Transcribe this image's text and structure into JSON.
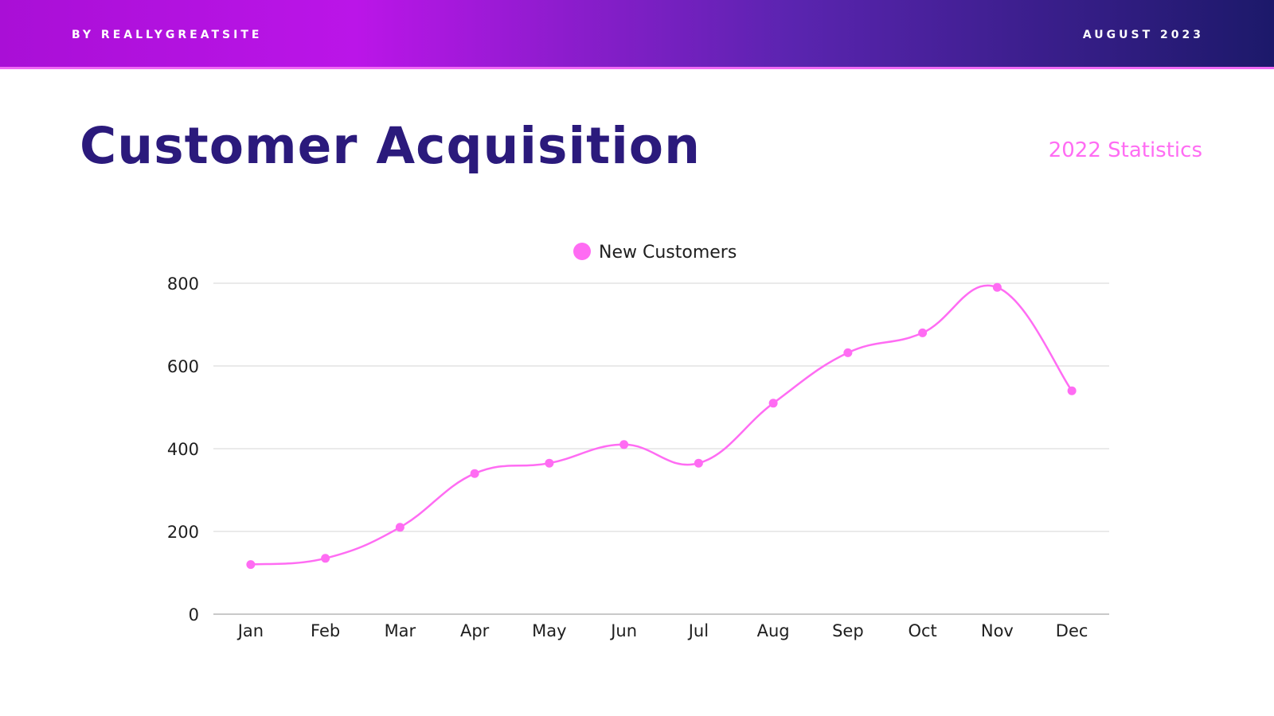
{
  "header": {
    "byline": "BY REALLYGREATSITE",
    "date": "AUGUST 2023"
  },
  "title": "Customer Acquisition",
  "subtitle": "2022 Statistics",
  "colors": {
    "line": "#ff6cf3",
    "title": "#2b1a7c",
    "grid": "#e3e3e3",
    "axis": "#c9c9c9"
  },
  "chart_data": {
    "type": "line",
    "title": "",
    "xlabel": "",
    "ylabel": "",
    "categories": [
      "Jan",
      "Feb",
      "Mar",
      "Apr",
      "May",
      "Jun",
      "Jul",
      "Aug",
      "Sep",
      "Oct",
      "Nov",
      "Dec"
    ],
    "series": [
      {
        "name": "New Customers",
        "values": [
          120,
          135,
          210,
          340,
          365,
          410,
          365,
          510,
          632,
          680,
          790,
          540
        ]
      }
    ],
    "ylim": [
      0,
      800
    ],
    "yticks": [
      0,
      200,
      400,
      600,
      800
    ],
    "grid": true,
    "legend": "top-center",
    "smooth": true,
    "markers": true
  }
}
